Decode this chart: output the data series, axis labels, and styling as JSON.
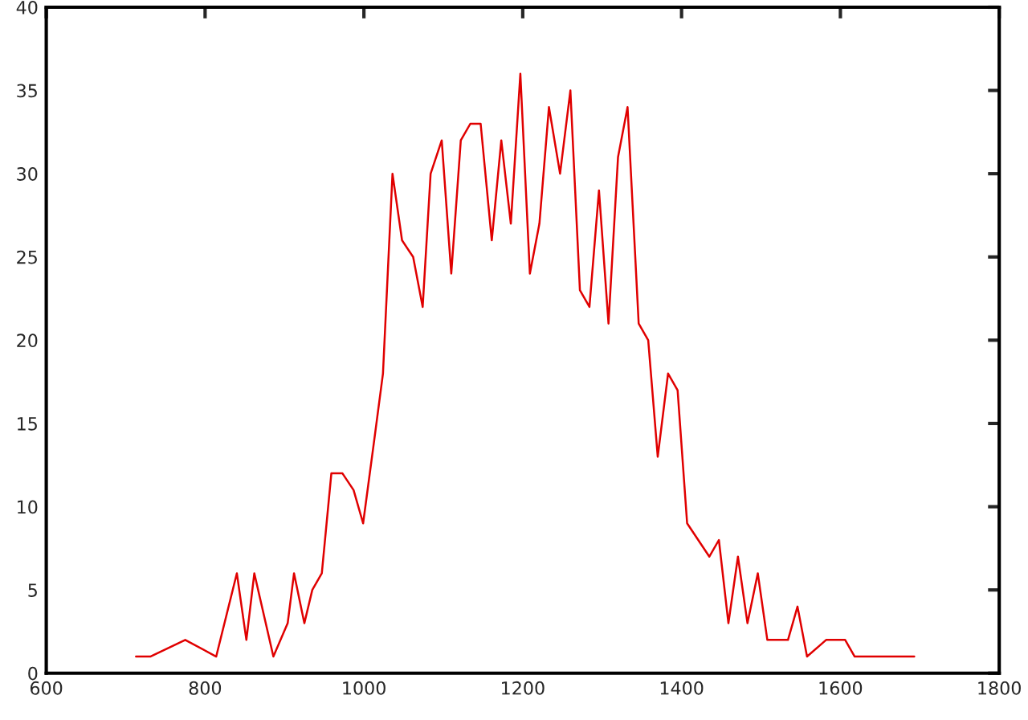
{
  "chart_data": {
    "type": "line",
    "x": [
      713,
      731,
      775,
      814,
      840,
      852,
      862,
      886,
      904,
      912,
      925,
      935,
      947,
      959,
      973,
      987,
      999,
      1013,
      1024,
      1036,
      1048,
      1062,
      1074,
      1084,
      1098,
      1110,
      1122,
      1134,
      1147,
      1161,
      1173,
      1185,
      1197,
      1209,
      1221,
      1233,
      1247,
      1260,
      1272,
      1284,
      1296,
      1308,
      1320,
      1332,
      1346,
      1358,
      1370,
      1383,
      1395,
      1407,
      1435,
      1447,
      1459,
      1471,
      1483,
      1496,
      1508,
      1534,
      1546,
      1558,
      1582,
      1606,
      1618,
      1693
    ],
    "series": [
      {
        "color": "#e00000",
        "values": [
          1,
          1,
          2,
          1,
          6,
          2,
          6,
          1,
          3,
          6,
          3,
          5,
          6,
          12,
          12,
          11,
          9,
          14,
          18,
          30,
          26,
          25,
          22,
          30,
          32,
          24,
          32,
          33,
          33,
          26,
          32,
          27,
          36,
          24,
          27,
          34,
          30,
          35,
          23,
          22,
          29,
          21,
          31,
          34,
          21,
          20,
          13,
          18,
          17,
          9,
          7,
          8,
          3,
          7,
          3,
          6,
          2,
          2,
          4,
          1,
          2,
          2,
          1,
          1
        ]
      }
    ],
    "xlim": [
      600,
      1800
    ],
    "xticks": [
      600,
      800,
      1000,
      1200,
      1400,
      1600,
      1800
    ],
    "ylim": [
      0,
      40
    ],
    "yticks": [
      0,
      5,
      10,
      15,
      20,
      25,
      30,
      35,
      40
    ],
    "grid": false,
    "marker": "none",
    "line_style": "solid"
  }
}
